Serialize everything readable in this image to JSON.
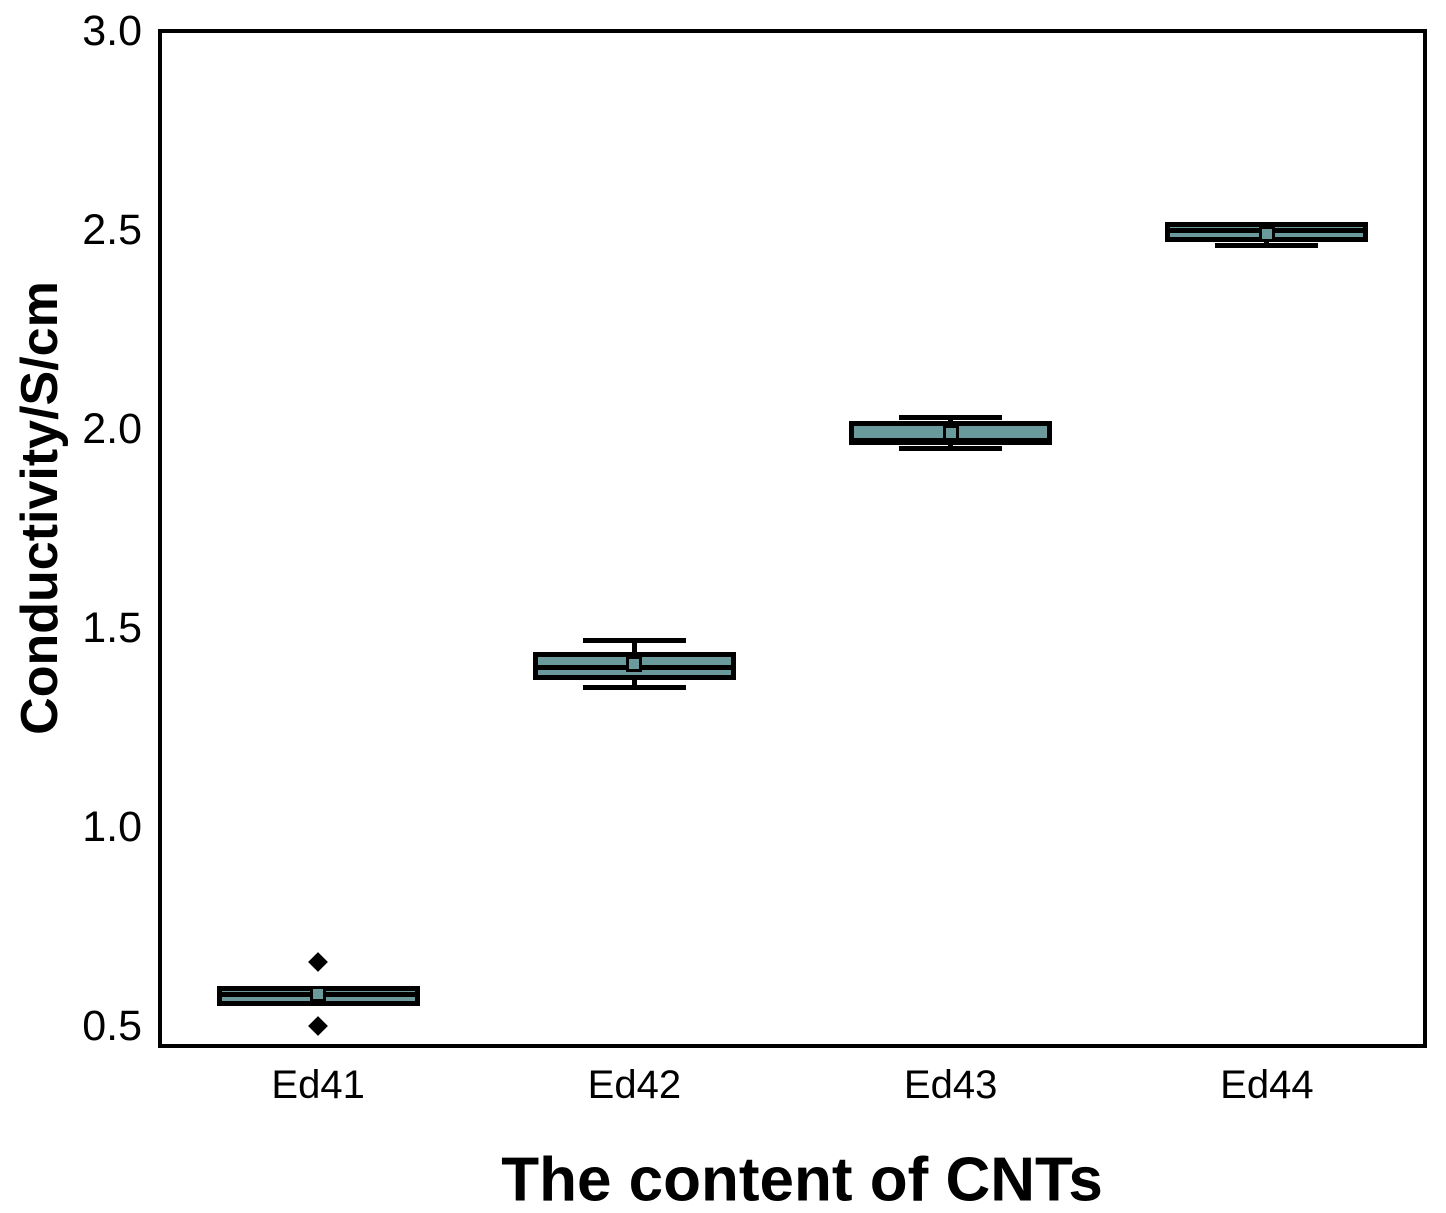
{
  "chart_data": {
    "type": "box",
    "title": "",
    "xlabel": "The content of CNTs",
    "ylabel": "Conductivity/S/cm",
    "categories": [
      "Ed41",
      "Ed42",
      "Ed43",
      "Ed44"
    ],
    "ylim": [
      0.45,
      3.0
    ],
    "yticks": [
      0.5,
      1.0,
      1.5,
      2.0,
      2.5,
      3.0
    ],
    "ytick_labels": [
      "0.5",
      "1.0",
      "1.5",
      "2.0",
      "2.5",
      "3.0"
    ],
    "grid": false,
    "legend": false,
    "box_fill": "#6a9a9b",
    "stroke": "#000000",
    "series": [
      {
        "category": "Ed41",
        "whisker_low": 0.55,
        "q1": 0.55,
        "median": 0.58,
        "q3": 0.6,
        "whisker_high": 0.6,
        "mean": 0.58,
        "outliers": [
          0.66,
          0.5
        ]
      },
      {
        "category": "Ed42",
        "whisker_low": 1.35,
        "q1": 1.37,
        "median": 1.4,
        "q3": 1.44,
        "whisker_high": 1.47,
        "mean": 1.41,
        "outliers": []
      },
      {
        "category": "Ed43",
        "whisker_low": 1.95,
        "q1": 1.96,
        "median": 1.97,
        "q3": 2.02,
        "whisker_high": 2.03,
        "mean": 1.99,
        "outliers": []
      },
      {
        "category": "Ed44",
        "whisker_low": 2.46,
        "q1": 2.47,
        "median": 2.5,
        "q3": 2.52,
        "whisker_high": 2.52,
        "mean": 2.49,
        "outliers": []
      }
    ]
  }
}
